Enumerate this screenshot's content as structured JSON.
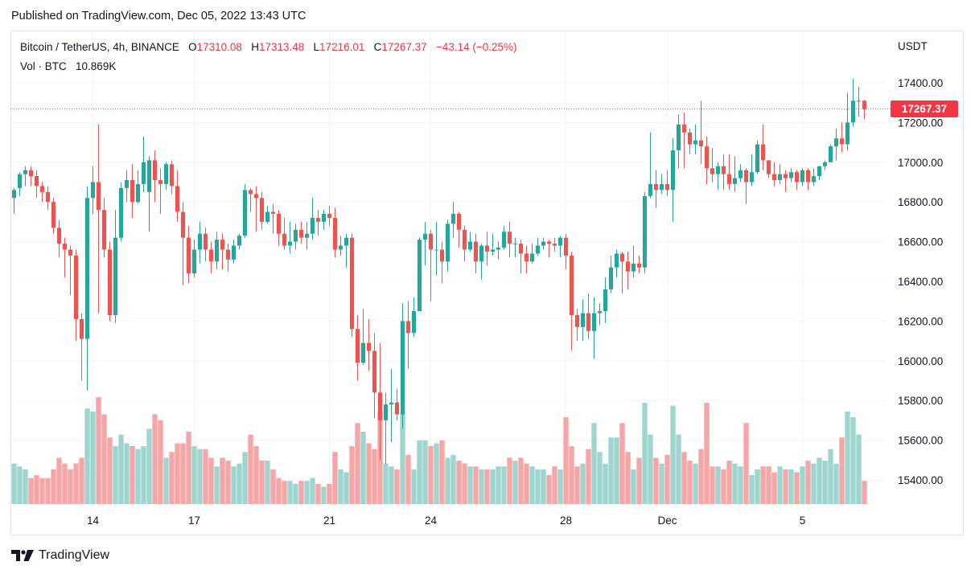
{
  "header": {
    "published": "Published on TradingView.com, Dec 05, 2022 13:43 UTC"
  },
  "legend": {
    "symbol": "Bitcoin / TetherUS, 4h, BINANCE",
    "open_label": "O",
    "open": "17310.08",
    "high_label": "H",
    "high": "17313.48",
    "low_label": "L",
    "low": "17216.01",
    "close_label": "C",
    "close": "17267.37",
    "change": "−43.14 (−0.25%)",
    "volume_label": "Vol · BTC",
    "volume": "10.869K"
  },
  "axis": {
    "unit": "USDT"
  },
  "last_price": "17267.37",
  "brand": {
    "name": "TradingView"
  },
  "colors": {
    "up": "#26a69a",
    "down": "#ef5350",
    "vol_up": "#9ed6cf",
    "vol_down": "#f5a6a6",
    "grid": "#f0f3fa",
    "price_line": "#f23645"
  },
  "chart_data": {
    "type": "candlestick",
    "y_ticks": [
      17400,
      17200,
      17000,
      16800,
      16600,
      16400,
      16200,
      16000,
      15800,
      15600,
      15400
    ],
    "y_tick_labels": [
      "17400.00",
      "17200.00",
      "17000.00",
      "16800.00",
      "16600.00",
      "16400.00",
      "16200.00",
      "16000.00",
      "15800.00",
      "15600.00",
      "15400.00"
    ],
    "ylim": [
      15290,
      17480
    ],
    "x_ticks": [
      {
        "label": "14",
        "index": 14
      },
      {
        "label": "17",
        "index": 32
      },
      {
        "label": "21",
        "index": 56
      },
      {
        "label": "24",
        "index": 74
      },
      {
        "label": "28",
        "index": 98
      },
      {
        "label": "Dec",
        "index": 116
      },
      {
        "label": "5",
        "index": 140
      }
    ],
    "last_price": 17267.37,
    "candles": [
      [
        16820,
        16860,
        16740,
        16870,
        1.4
      ],
      [
        16870,
        16940,
        16830,
        16950,
        1.3
      ],
      [
        16940,
        16960,
        16880,
        16980,
        1.2
      ],
      [
        16960,
        16930,
        16880,
        16980,
        0.9
      ],
      [
        16930,
        16880,
        16820,
        16960,
        1.0
      ],
      [
        16880,
        16850,
        16800,
        16900,
        0.9
      ],
      [
        16850,
        16800,
        16760,
        16880,
        0.9
      ],
      [
        16800,
        16670,
        16640,
        16820,
        1.2
      ],
      [
        16670,
        16590,
        16520,
        16710,
        1.6
      ],
      [
        16590,
        16560,
        16420,
        16620,
        1.4
      ],
      [
        16560,
        16530,
        16330,
        16580,
        1.2
      ],
      [
        16530,
        16210,
        16100,
        16560,
        1.4
      ],
      [
        16210,
        16110,
        15900,
        16240,
        1.6
      ],
      [
        16110,
        16820,
        15850,
        16880,
        3.3
      ],
      [
        16820,
        16900,
        16740,
        16980,
        3.2
      ],
      [
        16900,
        16760,
        16240,
        17190,
        3.7
      ],
      [
        16760,
        16560,
        16520,
        16820,
        3.1
      ],
      [
        16560,
        16230,
        16200,
        16600,
        2.3
      ],
      [
        16230,
        16620,
        16190,
        16760,
        2.0
      ],
      [
        16620,
        16870,
        16600,
        16900,
        2.4
      ],
      [
        16870,
        16910,
        16800,
        16960,
        2.1
      ],
      [
        16910,
        16800,
        16720,
        16990,
        2.0
      ],
      [
        16800,
        16890,
        16790,
        16960,
        1.9
      ],
      [
        16890,
        17000,
        16850,
        17130,
        2.0
      ],
      [
        16850,
        17010,
        16650,
        17030,
        2.6
      ],
      [
        17010,
        16910,
        16800,
        17060,
        3.1
      ],
      [
        16910,
        16890,
        16740,
        16970,
        2.9
      ],
      [
        16890,
        16990,
        16860,
        17000,
        1.6
      ],
      [
        16990,
        16880,
        16840,
        17010,
        1.8
      ],
      [
        16880,
        16750,
        16700,
        16960,
        2.1
      ],
      [
        16750,
        16620,
        16380,
        16800,
        2.1
      ],
      [
        16620,
        16440,
        16390,
        16680,
        2.5
      ],
      [
        16440,
        16560,
        16420,
        16610,
        2.0
      ],
      [
        16560,
        16640,
        16490,
        16700,
        1.9
      ],
      [
        16640,
        16560,
        16500,
        16670,
        1.9
      ],
      [
        16560,
        16500,
        16440,
        16600,
        1.6
      ],
      [
        16500,
        16610,
        16460,
        16650,
        1.3
      ],
      [
        16610,
        16560,
        16460,
        16640,
        1.6
      ],
      [
        16560,
        16510,
        16450,
        16590,
        1.5
      ],
      [
        16510,
        16580,
        16490,
        16610,
        1.3
      ],
      [
        16580,
        16630,
        16560,
        16640,
        1.4
      ],
      [
        16630,
        16860,
        16620,
        16890,
        1.8
      ],
      [
        16860,
        16840,
        16750,
        16870,
        2.4
      ],
      [
        16840,
        16820,
        16650,
        16880,
        2.0
      ],
      [
        16820,
        16700,
        16660,
        16850,
        1.5
      ],
      [
        16700,
        16750,
        16690,
        16780,
        1.5
      ],
      [
        16750,
        16740,
        16640,
        16790,
        1.2
      ],
      [
        16740,
        16640,
        16580,
        16760,
        0.9
      ],
      [
        16640,
        16580,
        16560,
        16720,
        0.8
      ],
      [
        16580,
        16600,
        16540,
        16700,
        0.8
      ],
      [
        16600,
        16660,
        16560,
        16690,
        0.7
      ],
      [
        16660,
        16620,
        16590,
        16700,
        0.8
      ],
      [
        16620,
        16640,
        16560,
        16700,
        0.8
      ],
      [
        16640,
        16720,
        16610,
        16820,
        0.9
      ],
      [
        16720,
        16700,
        16630,
        16760,
        0.7
      ],
      [
        16700,
        16740,
        16660,
        16760,
        0.6
      ],
      [
        16740,
        16720,
        16680,
        16780,
        0.7
      ],
      [
        16720,
        16560,
        16520,
        16770,
        1.8
      ],
      [
        16560,
        16580,
        16530,
        16630,
        1.2
      ],
      [
        16580,
        16620,
        16470,
        16640,
        1.1
      ],
      [
        16620,
        16160,
        16120,
        16640,
        2.0
      ],
      [
        16160,
        15990,
        15900,
        16230,
        2.8
      ],
      [
        15990,
        16090,
        15980,
        16260,
        2.5
      ],
      [
        16090,
        16050,
        15950,
        16210,
        2.1
      ],
      [
        16050,
        15840,
        15710,
        16140,
        1.9
      ],
      [
        15840,
        15700,
        15500,
        16090,
        3.2
      ],
      [
        15700,
        15780,
        15480,
        15840,
        1.4
      ],
      [
        15780,
        15790,
        15590,
        15960,
        1.3
      ],
      [
        15790,
        15730,
        15700,
        15860,
        1.2
      ],
      [
        15730,
        16200,
        15660,
        16290,
        3.1
      ],
      [
        16200,
        16140,
        15960,
        16300,
        1.7
      ],
      [
        16140,
        16250,
        16120,
        16320,
        1.2
      ],
      [
        16250,
        16610,
        16250,
        16620,
        2.2
      ],
      [
        16610,
        16640,
        16480,
        16700,
        2.2
      ],
      [
        16640,
        16560,
        16300,
        16660,
        2.0
      ],
      [
        16560,
        16560,
        16430,
        16700,
        2.1
      ],
      [
        16560,
        16500,
        16390,
        16600,
        2.2
      ],
      [
        16500,
        16690,
        16450,
        16710,
        1.6
      ],
      [
        16690,
        16740,
        16620,
        16800,
        1.7
      ],
      [
        16740,
        16660,
        16570,
        16750,
        1.5
      ],
      [
        16660,
        16560,
        16500,
        16680,
        1.4
      ],
      [
        16560,
        16600,
        16550,
        16650,
        1.3
      ],
      [
        16600,
        16500,
        16440,
        16640,
        1.3
      ],
      [
        16500,
        16580,
        16410,
        16590,
        1.2
      ],
      [
        16580,
        16550,
        16480,
        16650,
        1.2
      ],
      [
        16550,
        16560,
        16530,
        16640,
        1.2
      ],
      [
        16560,
        16570,
        16510,
        16600,
        1.3
      ],
      [
        16570,
        16650,
        16560,
        16680,
        1.3
      ],
      [
        16650,
        16590,
        16520,
        16700,
        1.6
      ],
      [
        16590,
        16590,
        16520,
        16620,
        1.5
      ],
      [
        16590,
        16540,
        16440,
        16610,
        1.6
      ],
      [
        16540,
        16500,
        16440,
        16580,
        1.4
      ],
      [
        16500,
        16540,
        16490,
        16590,
        1.3
      ],
      [
        16540,
        16580,
        16530,
        16620,
        1.2
      ],
      [
        16580,
        16600,
        16560,
        16620,
        1.2
      ],
      [
        16600,
        16590,
        16520,
        16610,
        1.0
      ],
      [
        16590,
        16580,
        16550,
        16620,
        1.3
      ],
      [
        16580,
        16620,
        16520,
        16630,
        1.2
      ],
      [
        16620,
        16530,
        16460,
        16640,
        3.0
      ],
      [
        16530,
        16230,
        16050,
        16550,
        2.0
      ],
      [
        16230,
        16170,
        16100,
        16260,
        1.3
      ],
      [
        16170,
        16240,
        16100,
        16310,
        1.4
      ],
      [
        16240,
        16150,
        16110,
        16340,
        1.9
      ],
      [
        16150,
        16240,
        16010,
        16320,
        2.8
      ],
      [
        16240,
        16250,
        16180,
        16290,
        1.8
      ],
      [
        16250,
        16360,
        16190,
        16420,
        1.4
      ],
      [
        16360,
        16470,
        16340,
        16530,
        2.3
      ],
      [
        16470,
        16540,
        16420,
        16560,
        2.3
      ],
      [
        16540,
        16500,
        16340,
        16550,
        2.8
      ],
      [
        16500,
        16450,
        16360,
        16550,
        1.8
      ],
      [
        16450,
        16490,
        16420,
        16580,
        1.2
      ],
      [
        16490,
        16470,
        16440,
        16530,
        1.6
      ],
      [
        16470,
        16830,
        16440,
        16850,
        3.5
      ],
      [
        16830,
        16890,
        16820,
        17150,
        2.4
      ],
      [
        16890,
        16860,
        16770,
        16960,
        1.6
      ],
      [
        16860,
        16890,
        16840,
        16940,
        1.4
      ],
      [
        16890,
        16860,
        16830,
        16960,
        1.7
      ],
      [
        16860,
        17060,
        16700,
        17120,
        3.4
      ],
      [
        17060,
        17190,
        16970,
        17240,
        2.4
      ],
      [
        17190,
        17150,
        16970,
        17250,
        1.8
      ],
      [
        17150,
        17090,
        17040,
        17170,
        1.5
      ],
      [
        17090,
        17110,
        17040,
        17190,
        1.4
      ],
      [
        17110,
        17080,
        16990,
        17310,
        1.9
      ],
      [
        17080,
        16970,
        16890,
        17130,
        3.5
      ],
      [
        16970,
        16940,
        16900,
        17070,
        1.3
      ],
      [
        16940,
        16980,
        16860,
        17000,
        1.3
      ],
      [
        16980,
        16940,
        16860,
        17040,
        1.2
      ],
      [
        16940,
        16890,
        16860,
        17040,
        1.5
      ],
      [
        16890,
        16920,
        16850,
        17030,
        1.4
      ],
      [
        16920,
        16960,
        16900,
        16990,
        1.3
      ],
      [
        16960,
        16900,
        16790,
        16970,
        2.8
      ],
      [
        16900,
        16950,
        16880,
        17040,
        1.0
      ],
      [
        16950,
        17090,
        16940,
        17110,
        1.2
      ],
      [
        17090,
        17010,
        16960,
        17190,
        1.3
      ],
      [
        17010,
        16940,
        16920,
        17010,
        1.3
      ],
      [
        16940,
        16910,
        16880,
        17000,
        1.1
      ],
      [
        16910,
        16940,
        16890,
        16990,
        1.3
      ],
      [
        16940,
        16920,
        16850,
        16960,
        1.2
      ],
      [
        16920,
        16950,
        16900,
        16970,
        1.2
      ],
      [
        16950,
        16900,
        16860,
        16960,
        1.1
      ],
      [
        16900,
        16960,
        16880,
        16970,
        1.3
      ],
      [
        16960,
        16900,
        16860,
        16970,
        1.5
      ],
      [
        16900,
        16930,
        16880,
        16970,
        1.4
      ],
      [
        16930,
        16980,
        16910,
        16980,
        1.6
      ],
      [
        16980,
        17000,
        16960,
        17010,
        1.5
      ],
      [
        17000,
        17080,
        17000,
        17090,
        1.9
      ],
      [
        17080,
        17120,
        17010,
        17170,
        1.4
      ],
      [
        17120,
        17090,
        17050,
        17200,
        2.3
      ],
      [
        17090,
        17200,
        17060,
        17350,
        3.2
      ],
      [
        17200,
        17310,
        17180,
        17420,
        3.0
      ],
      [
        17310,
        17310,
        17230,
        17380,
        2.4
      ],
      [
        17310,
        17267.37,
        17216.01,
        17313.48,
        0.8
      ]
    ]
  }
}
